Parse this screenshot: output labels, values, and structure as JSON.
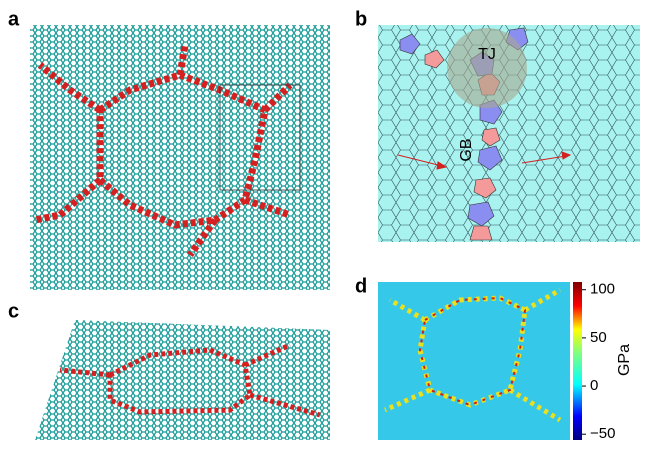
{
  "panels": [
    {
      "label": "a"
    },
    {
      "label": "b"
    },
    {
      "label": "c"
    },
    {
      "label": "d"
    }
  ],
  "annotations": {
    "triple_junction": "TJ",
    "grain_boundary": "GB"
  },
  "colorbar": {
    "label": "GPa",
    "lim": [
      -56,
      108
    ],
    "ticks": [
      100,
      50,
      0,
      {
        "value": -50,
        "label": "−50"
      }
    ]
  }
}
